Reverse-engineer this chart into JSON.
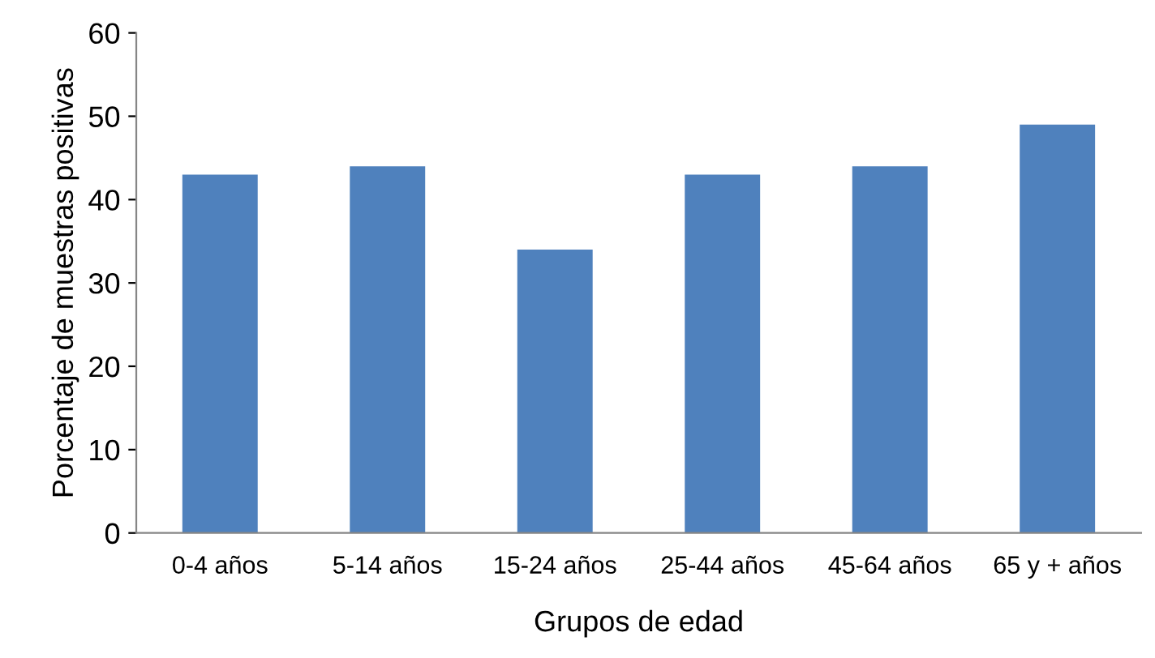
{
  "chart_data": {
    "type": "bar",
    "categories": [
      "0-4 años",
      "5-14 años",
      "15-24 años",
      "25-44 años",
      "45-64 años",
      "65 y + años"
    ],
    "values": [
      43,
      44,
      34,
      43,
      44,
      49
    ],
    "color": "#4f81bd",
    "xlabel": "Grupos de edad",
    "ylabel": "Porcentaje de muestras positivas",
    "ylim": [
      0,
      60
    ],
    "yticks": [
      0,
      10,
      20,
      30,
      40,
      50,
      60
    ],
    "grid": false,
    "legend": false
  }
}
